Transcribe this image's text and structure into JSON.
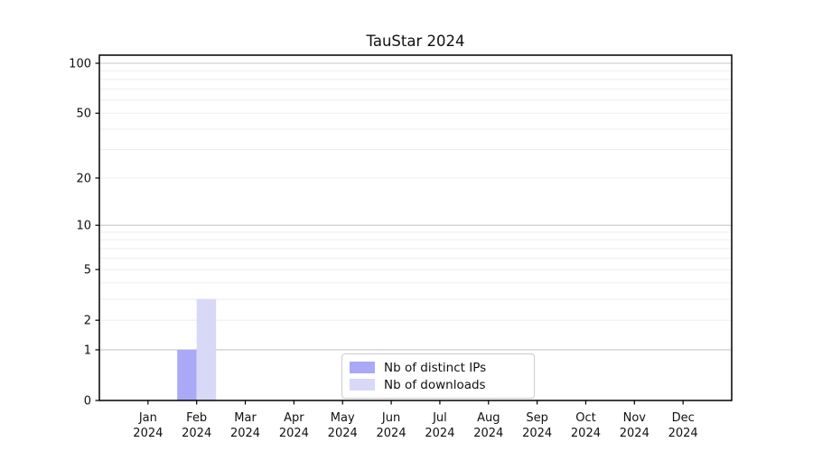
{
  "figure": {
    "background": "#ffffff"
  },
  "chart_data": {
    "type": "bar",
    "title": "TauStar 2024",
    "categories": [
      "Jan 2024",
      "Feb 2024",
      "Mar 2024",
      "Apr 2024",
      "May 2024",
      "Jun 2024",
      "Jul 2024",
      "Aug 2024",
      "Sep 2024",
      "Oct 2024",
      "Nov 2024",
      "Dec 2024"
    ],
    "series": [
      {
        "name": "Nb of distinct IPs",
        "color": "#a9a9f7",
        "values": [
          0,
          1,
          0,
          0,
          0,
          0,
          0,
          0,
          0,
          0,
          0,
          0
        ]
      },
      {
        "name": "Nb of downloads",
        "color": "#d8d8f7",
        "values": [
          0,
          3,
          0,
          0,
          0,
          0,
          0,
          0,
          0,
          0,
          0,
          0
        ]
      }
    ],
    "xlabel": "",
    "ylabel": "",
    "yscale": "log1p",
    "yticks": [
      0,
      1,
      2,
      5,
      10,
      20,
      50,
      100
    ],
    "ylim": [
      0,
      112
    ],
    "grid": "horizontal",
    "legend_position": "lower center inside plot"
  },
  "colors": {
    "major_grid": "#c7c7c7",
    "minor_grid": "#ededed",
    "axis_line": "#000000",
    "tick_text": "#111111"
  }
}
